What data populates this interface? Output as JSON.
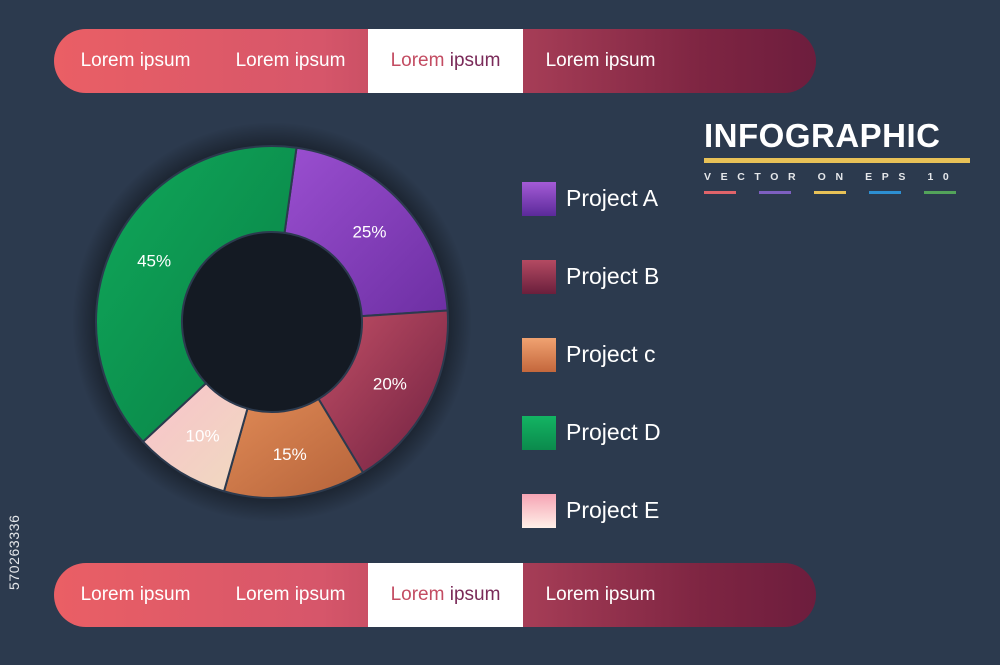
{
  "tabs_top": [
    {
      "label": "Lorem ipsum",
      "active": false
    },
    {
      "label": "Lorem ipsum",
      "active": false
    },
    {
      "label_a": "Lorem",
      "label_b": "ipsum",
      "active": true
    },
    {
      "label": "Lorem ipsum",
      "active": false
    }
  ],
  "tabs_bottom": [
    {
      "label": "Lorem ipsum",
      "active": false
    },
    {
      "label": "Lorem ipsum",
      "active": false
    },
    {
      "label_a": "Lorem",
      "label_b": "ipsum",
      "active": true
    },
    {
      "label": "Lorem ipsum",
      "active": false
    }
  ],
  "brand": {
    "title": "INFOGRAPHIC",
    "subtitle": "VECTOR ON EPS 10",
    "rule_color": "#e8c157",
    "swatch_colors": [
      "#e0646a",
      "#7d5fc1",
      "#e8c157",
      "#2d8fd2",
      "#53a35a"
    ]
  },
  "side_id": "570263336",
  "chart_data": {
    "type": "pie",
    "variant": "donut",
    "categories": [
      "Project A",
      "Project B",
      "Project c",
      "Project D",
      "Project E"
    ],
    "values": [
      25,
      20,
      15,
      45,
      10
    ],
    "labels": [
      "25%",
      "20%",
      "15%",
      "45%",
      "10%"
    ],
    "colors": [
      [
        "#9a4fd0",
        "#6d2fa3"
      ],
      [
        "#c24f66",
        "#6e2040"
      ],
      [
        "#e08a56",
        "#b5633a"
      ],
      [
        "#0fa85a",
        "#0a7f45"
      ],
      [
        "#f8c2cb",
        "#f0dac0"
      ]
    ],
    "legend": {
      "position": "right",
      "items": [
        {
          "label": "Project A",
          "color_top": "#a45bd6",
          "color_bottom": "#5b2a9a"
        },
        {
          "label": "Project B",
          "color_top": "#b44a62",
          "color_bottom": "#6a1f3c"
        },
        {
          "label": "Project c",
          "color_top": "#f0a271",
          "color_bottom": "#c4673c"
        },
        {
          "label": "Project D",
          "color_top": "#13b463",
          "color_bottom": "#0b8a4c"
        },
        {
          "label": "Project E",
          "color_top": "#f6a4b4",
          "color_bottom": "#fff0e8"
        }
      ]
    }
  }
}
